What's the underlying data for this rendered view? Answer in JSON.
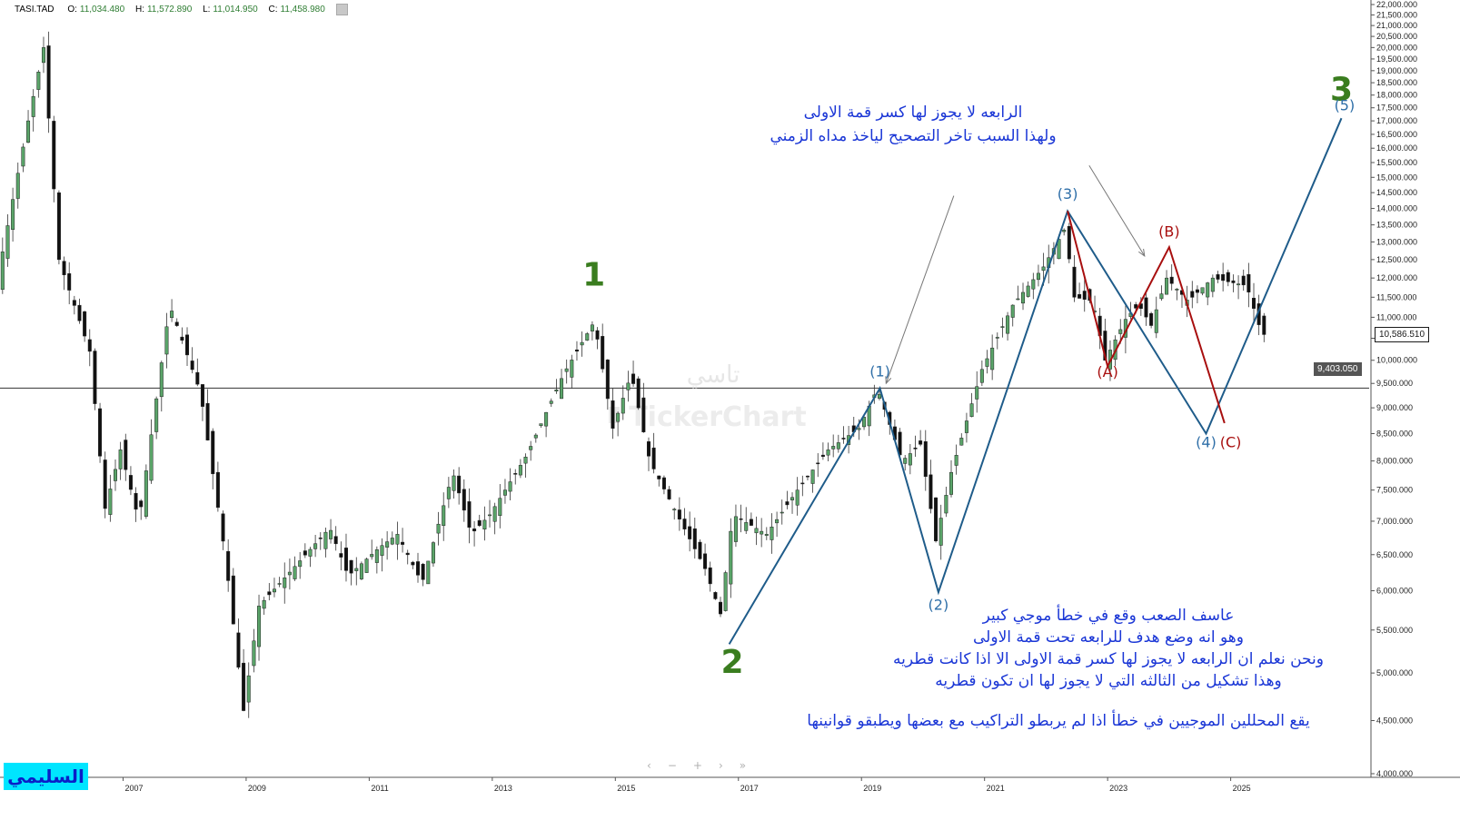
{
  "header": {
    "symbol": "TASI.TAD",
    "open_label": "O:",
    "open": "11,034.480",
    "high_label": "H:",
    "high": "11,572.890",
    "low_label": "L:",
    "low": "11,014.950",
    "close_label": "C:",
    "close": "11,458.980"
  },
  "watermark": {
    "arabic": "تاسي",
    "brand": "TickerChart"
  },
  "signature": "السليمي",
  "price_boxes": {
    "last": "10,586.510",
    "level": "9,403.050",
    "last_color": "#1a1a1a",
    "level_color": "#555555"
  },
  "annotations": {
    "top_line1": "الرابعه لا يجوز لها كسر قمة الاولى",
    "top_line2": "ولهذا السبب تاخر التصحيح لياخذ مداه الزمني",
    "bottom_line1": "عاسف الصعب وقع في خطأ موجي كبير",
    "bottom_line2": "وهو انه وضع هدف للرابعه تحت قمة الاولى",
    "bottom_line3": "ونحن نعلم ان الرابعه لا يجوز لها كسر قمة الاولى الا اذا كانت قطريه",
    "bottom_line4": "وهذا تشكيل من الثالثه التي لا يجوز لها ان تكون قطريه",
    "bottom_line5": "يقع المحللين الموجيين في خطأ اذا لم يربطو التراكيب مع بعضها ويطبقو قوانينها"
  },
  "nav_icons": [
    "left-arrow-icon",
    "zoom-out-icon",
    "zoom-in-icon",
    "right-arrow-icon",
    "right-end-icon"
  ],
  "chart_data": {
    "type": "candlestick",
    "y_scale": "log",
    "ylim": [
      4000,
      22000
    ],
    "y_ticks": [
      22000,
      21500,
      21000,
      20500,
      20000,
      19500,
      19000,
      18500,
      18000,
      17500,
      17000,
      16500,
      16000,
      15500,
      15000,
      14500,
      14000,
      13500,
      13000,
      12500,
      12000,
      11500,
      11000,
      10500,
      10000,
      9500,
      9000,
      8500,
      8000,
      7500,
      7000,
      6500,
      6000,
      5500,
      5000,
      4500,
      4000
    ],
    "y_tick_labels": [
      "22,000.000",
      "21,500.000",
      "21,000.000",
      "20,500.000",
      "20,000.000",
      "19,500.000",
      "19,000.000",
      "18,500.000",
      "18,000.000",
      "17,500.000",
      "17,000.000",
      "16,500.000",
      "16,000.000",
      "15,500.000",
      "15,000.000",
      "14,500.000",
      "14,000.000",
      "13,500.000",
      "13,000.000",
      "12,500.000",
      "12,000.000",
      "11,500.000",
      "11,000.000",
      "10,500.000",
      "10,000.000",
      "9,500.000",
      "9,000.000",
      "8,500.000",
      "8,000.000",
      "7,500.000",
      "7,000.000",
      "6,500.000",
      "6,000.000",
      "5,500.000",
      "5,000.000",
      "4,500.000",
      "4,000.000"
    ],
    "x_range": [
      2005.0,
      2027.25
    ],
    "x_ticks": [
      2007,
      2009,
      2011,
      2013,
      2015,
      2017,
      2019,
      2021,
      2023,
      2025
    ],
    "x_tick_labels": [
      "2007",
      "2009",
      "2011",
      "2013",
      "2015",
      "2017",
      "2019",
      "2021",
      "2023",
      "2025"
    ],
    "horizontal_line": 9403.05,
    "last_price": 10586.51,
    "up_color": "#5aa469",
    "down_color": "#111111",
    "anchors": [
      [
        2005.0,
        12000
      ],
      [
        2005.5,
        17000
      ],
      [
        2005.75,
        20000
      ],
      [
        2006.0,
        12500
      ],
      [
        2006.5,
        10200
      ],
      [
        2006.75,
        7200
      ],
      [
        2007.0,
        8200
      ],
      [
        2007.3,
        7000
      ],
      [
        2007.8,
        11300
      ],
      [
        2008.3,
        9300
      ],
      [
        2008.7,
        6500
      ],
      [
        2009.0,
        4600
      ],
      [
        2009.25,
        5800
      ],
      [
        2009.8,
        6300
      ],
      [
        2010.4,
        6900
      ],
      [
        2010.7,
        6200
      ],
      [
        2011.2,
        6600
      ],
      [
        2011.5,
        6800
      ],
      [
        2011.9,
        6100
      ],
      [
        2012.4,
        7800
      ],
      [
        2012.7,
        6800
      ],
      [
        2013.0,
        7100
      ],
      [
        2013.6,
        8100
      ],
      [
        2014.2,
        9700
      ],
      [
        2014.7,
        10900
      ],
      [
        2015.0,
        8600
      ],
      [
        2015.3,
        9700
      ],
      [
        2015.6,
        8000
      ],
      [
        2016.1,
        7000
      ],
      [
        2016.5,
        6300
      ],
      [
        2016.75,
        5700
      ],
      [
        2016.95,
        7100
      ],
      [
        2017.5,
        6800
      ],
      [
        2018.0,
        7500
      ],
      [
        2018.5,
        8200
      ],
      [
        2019.0,
        8600
      ],
      [
        2019.3,
        9400
      ],
      [
        2019.7,
        8000
      ],
      [
        2020.0,
        8300
      ],
      [
        2020.25,
        6700
      ],
      [
        2020.5,
        7800
      ],
      [
        2021.0,
        9800
      ],
      [
        2021.5,
        11300
      ],
      [
        2022.0,
        12300
      ],
      [
        2022.35,
        13400
      ],
      [
        2022.5,
        11500
      ],
      [
        2022.8,
        11400
      ],
      [
        2023.0,
        10000
      ],
      [
        2023.35,
        11000
      ],
      [
        2023.55,
        11300
      ],
      [
        2023.75,
        10800
      ],
      [
        2024.0,
        12000
      ],
      [
        2024.35,
        11400
      ],
      [
        2024.75,
        12000
      ],
      [
        2025.0,
        11900
      ],
      [
        2025.3,
        11800
      ],
      [
        2025.55,
        10586.51
      ]
    ],
    "wave_counts": [
      {
        "label": "1",
        "x": 2014.65,
        "y": 11800
      },
      {
        "label": "2",
        "x": 2016.9,
        "y": 5000
      },
      {
        "label": "3",
        "x": 2026.8,
        "y": 17800
      }
    ],
    "blue_wave": {
      "points": [
        [
          2016.85,
          5330
        ],
        [
          2019.3,
          9400
        ],
        [
          2020.25,
          5980
        ],
        [
          2022.35,
          13920
        ],
        [
          2024.6,
          8500
        ],
        [
          2026.8,
          17100
        ]
      ],
      "labels": [
        {
          "label": "(1)",
          "x": 2019.3,
          "y": 9650
        },
        {
          "label": "(2)",
          "x": 2020.25,
          "y": 5750
        },
        {
          "label": "(3)",
          "x": 2022.35,
          "y": 14300
        },
        {
          "label": "(4)",
          "x": 2024.6,
          "y": 8250
        },
        {
          "label": "(5)",
          "x": 2026.85,
          "y": 17400
        }
      ],
      "color": "#1f5c8a"
    },
    "red_abc": {
      "points": [
        [
          2022.35,
          13920
        ],
        [
          2023.0,
          9870
        ],
        [
          2024.0,
          12850
        ],
        [
          2024.9,
          8700
        ]
      ],
      "labels": [
        {
          "label": "(A)",
          "x": 2023.0,
          "y": 9640
        },
        {
          "label": "(B)",
          "x": 2024.0,
          "y": 13150
        },
        {
          "label": "(C)",
          "x": 2025.0,
          "y": 8250
        }
      ],
      "color": "#a80f0f"
    },
    "arrows": [
      {
        "from": [
          2020.5,
          14400
        ],
        "to": [
          2019.4,
          9500
        ]
      },
      {
        "from": [
          2022.7,
          15400
        ],
        "to": [
          2023.6,
          12600
        ]
      }
    ]
  }
}
